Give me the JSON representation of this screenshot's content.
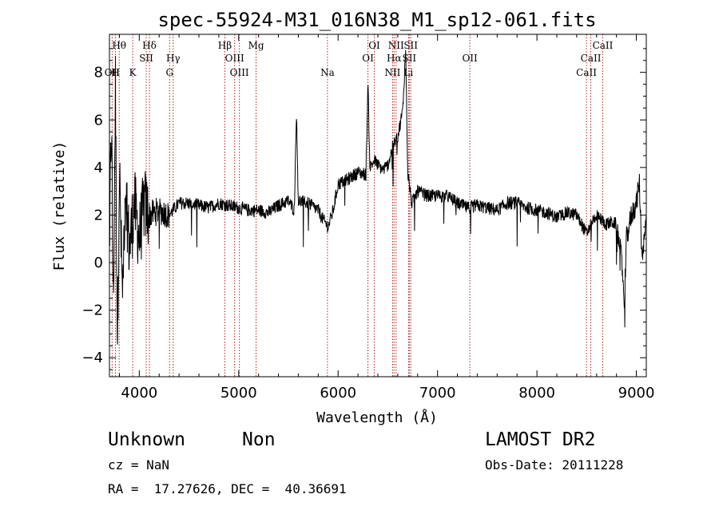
{
  "chart_data": {
    "type": "line",
    "title": "spec-55924-M31_016N38_M1_sp12-061.fits",
    "xlabel": "Wavelength (Å)",
    "ylabel": "Flux (relative)",
    "xlim": [
      3700,
      9100
    ],
    "ylim": [
      -4.8,
      9.6
    ],
    "xticks": [
      4000,
      5000,
      6000,
      7000,
      8000,
      9000
    ],
    "yticks": [
      -4,
      -2,
      0,
      2,
      4,
      6,
      8
    ],
    "grid": false,
    "line_color": "#000000",
    "marker_color": "#b22222",
    "lines": [
      {
        "label": "Hθ",
        "x": 3798,
        "row": 1
      },
      {
        "label": "OII",
        "x": 3727,
        "row": 3
      },
      {
        "label": "H",
        "x": 3760,
        "row": 3
      },
      {
        "label": "K",
        "x": 3934,
        "row": 3
      },
      {
        "label": "Hδ",
        "x": 4102,
        "row": 1
      },
      {
        "label": "SII",
        "x": 4070,
        "row": 2
      },
      {
        "label": "Hγ",
        "x": 4341,
        "row": 2
      },
      {
        "label": "G",
        "x": 4305,
        "row": 3
      },
      {
        "label": "Hβ",
        "x": 4861,
        "row": 1
      },
      {
        "label": "OIII",
        "x": 4959,
        "row": 2
      },
      {
        "label": "OIII",
        "x": 5007,
        "row": 3
      },
      {
        "label": "Mg",
        "x": 5175,
        "row": 1
      },
      {
        "label": "Na",
        "x": 5893,
        "row": 3
      },
      {
        "label": "OI",
        "x": 6364,
        "row": 1
      },
      {
        "label": "OI",
        "x": 6300,
        "row": 2
      },
      {
        "label": "NII",
        "x": 6583,
        "row": 1
      },
      {
        "label": "Hα",
        "x": 6563,
        "row": 2
      },
      {
        "label": "NII",
        "x": 6548,
        "row": 3
      },
      {
        "label": "SII",
        "x": 6731,
        "row": 1
      },
      {
        "label": "SII",
        "x": 6716,
        "row": 2
      },
      {
        "label": "Li",
        "x": 6708,
        "row": 3
      },
      {
        "label": "OII",
        "x": 7325,
        "row": 2
      },
      {
        "label": "CaII",
        "x": 8662,
        "row": 1
      },
      {
        "label": "CaII",
        "x": 8542,
        "row": 2
      },
      {
        "label": "CaII",
        "x": 8498,
        "row": 3
      }
    ],
    "flux_anchors": [
      [
        3700,
        1.0
      ],
      [
        3720,
        6.0
      ],
      [
        3740,
        -2.0
      ],
      [
        3760,
        7.5
      ],
      [
        3780,
        -3.5
      ],
      [
        3800,
        4.0
      ],
      [
        3830,
        -1.5
      ],
      [
        3860,
        3.5
      ],
      [
        3900,
        0.5
      ],
      [
        3950,
        2.5
      ],
      [
        4000,
        1.0
      ],
      [
        4050,
        2.5
      ],
      [
        4100,
        2.0
      ],
      [
        4200,
        2.2
      ],
      [
        4300,
        2.0
      ],
      [
        4400,
        2.5
      ],
      [
        4500,
        2.5
      ],
      [
        4600,
        2.4
      ],
      [
        4700,
        2.3
      ],
      [
        4800,
        2.5
      ],
      [
        4900,
        2.4
      ],
      [
        5000,
        2.3
      ],
      [
        5100,
        2.2
      ],
      [
        5200,
        2.2
      ],
      [
        5300,
        2.1
      ],
      [
        5400,
        2.4
      ],
      [
        5500,
        2.6
      ],
      [
        5560,
        2.2
      ],
      [
        5580,
        6.4
      ],
      [
        5600,
        2.6
      ],
      [
        5700,
        2.5
      ],
      [
        5800,
        2.2
      ],
      [
        5850,
        1.8
      ],
      [
        5900,
        1.5
      ],
      [
        5950,
        2.2
      ],
      [
        6000,
        3.3
      ],
      [
        6100,
        3.5
      ],
      [
        6200,
        3.8
      ],
      [
        6280,
        3.7
      ],
      [
        6300,
        7.6
      ],
      [
        6320,
        4.0
      ],
      [
        6364,
        4.3
      ],
      [
        6400,
        4.1
      ],
      [
        6450,
        3.9
      ],
      [
        6500,
        4.1
      ],
      [
        6550,
        4.9
      ],
      [
        6600,
        5.3
      ],
      [
        6650,
        6.4
      ],
      [
        6680,
        9.0
      ],
      [
        6700,
        3.8
      ],
      [
        6740,
        2.5
      ],
      [
        6800,
        3.0
      ],
      [
        6900,
        2.8
      ],
      [
        7000,
        2.8
      ],
      [
        7100,
        2.8
      ],
      [
        7200,
        2.5
      ],
      [
        7300,
        2.3
      ],
      [
        7400,
        2.4
      ],
      [
        7500,
        2.3
      ],
      [
        7600,
        2.2
      ],
      [
        7700,
        2.5
      ],
      [
        7800,
        2.5
      ],
      [
        7900,
        2.3
      ],
      [
        8000,
        2.2
      ],
      [
        8100,
        2.1
      ],
      [
        8200,
        1.9
      ],
      [
        8300,
        2.1
      ],
      [
        8400,
        2.0
      ],
      [
        8500,
        1.2
      ],
      [
        8550,
        1.7
      ],
      [
        8600,
        2.0
      ],
      [
        8700,
        1.6
      ],
      [
        8750,
        1.7
      ],
      [
        8800,
        1.6
      ],
      [
        8850,
        0.2
      ],
      [
        8880,
        -1.6
      ],
      [
        8900,
        1.0
      ],
      [
        8950,
        2.0
      ],
      [
        9000,
        2.5
      ],
      [
        9030,
        3.4
      ],
      [
        9060,
        0.0
      ],
      [
        9100,
        1.8
      ]
    ]
  },
  "footer": {
    "class_label": "Unknown",
    "subclass_label": "Non",
    "survey": "LAMOST DR2",
    "cz": "cz = NaN",
    "obs_date": "Obs-Date: 20111228",
    "coords": "RA =  17.27626, DEC =  40.36691"
  }
}
